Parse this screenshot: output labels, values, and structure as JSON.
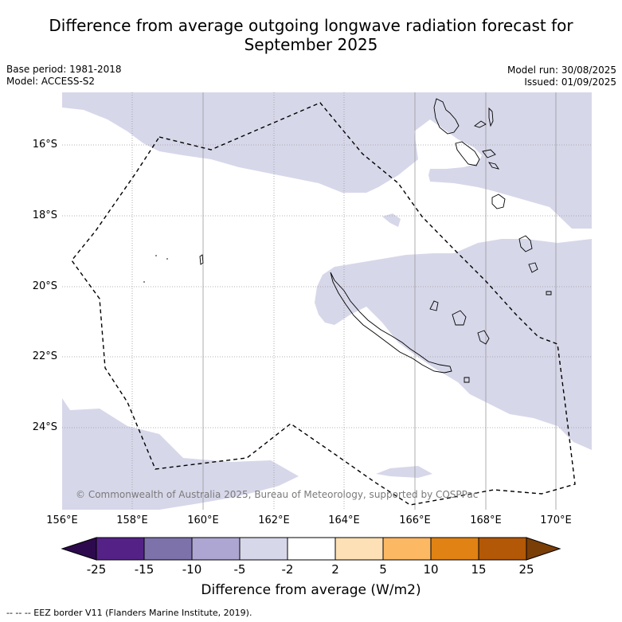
{
  "title_line1": "Difference from average outgoing longwave radiation forecast for",
  "title_line2": "September 2025",
  "base_period": "Base period: 1981-2018",
  "model": "Model: ACCESS-S2",
  "model_run": "Model run: 30/08/2025",
  "issued": "Issued: 01/09/2025",
  "lat_labels": [
    "16°S",
    "18°S",
    "20°S",
    "22°S",
    "24°S"
  ],
  "lon_labels": [
    "156°E",
    "158°E",
    "160°E",
    "162°E",
    "164°E",
    "166°E",
    "168°E",
    "170°E"
  ],
  "copyright": "© Commonwealth of Australia 2025, Bureau of Meteorology, supported by COSPPac",
  "colorbar": {
    "ticks": [
      "-25",
      "-15",
      "-10",
      "-5",
      "-2",
      "2",
      "5",
      "10",
      "15",
      "25"
    ],
    "colors": [
      "#2d0a4d",
      "#542287",
      "#7e72ab",
      "#aea6d2",
      "#d7d7ea",
      "#ffffff",
      "#fde0b5",
      "#fdb863",
      "#e08214",
      "#b35806",
      "#7a3e07"
    ],
    "label": "Difference from average (W/m2)"
  },
  "footer": "--  --  -- EEZ border V11 (Flanders Marine Institute, 2019)."
}
